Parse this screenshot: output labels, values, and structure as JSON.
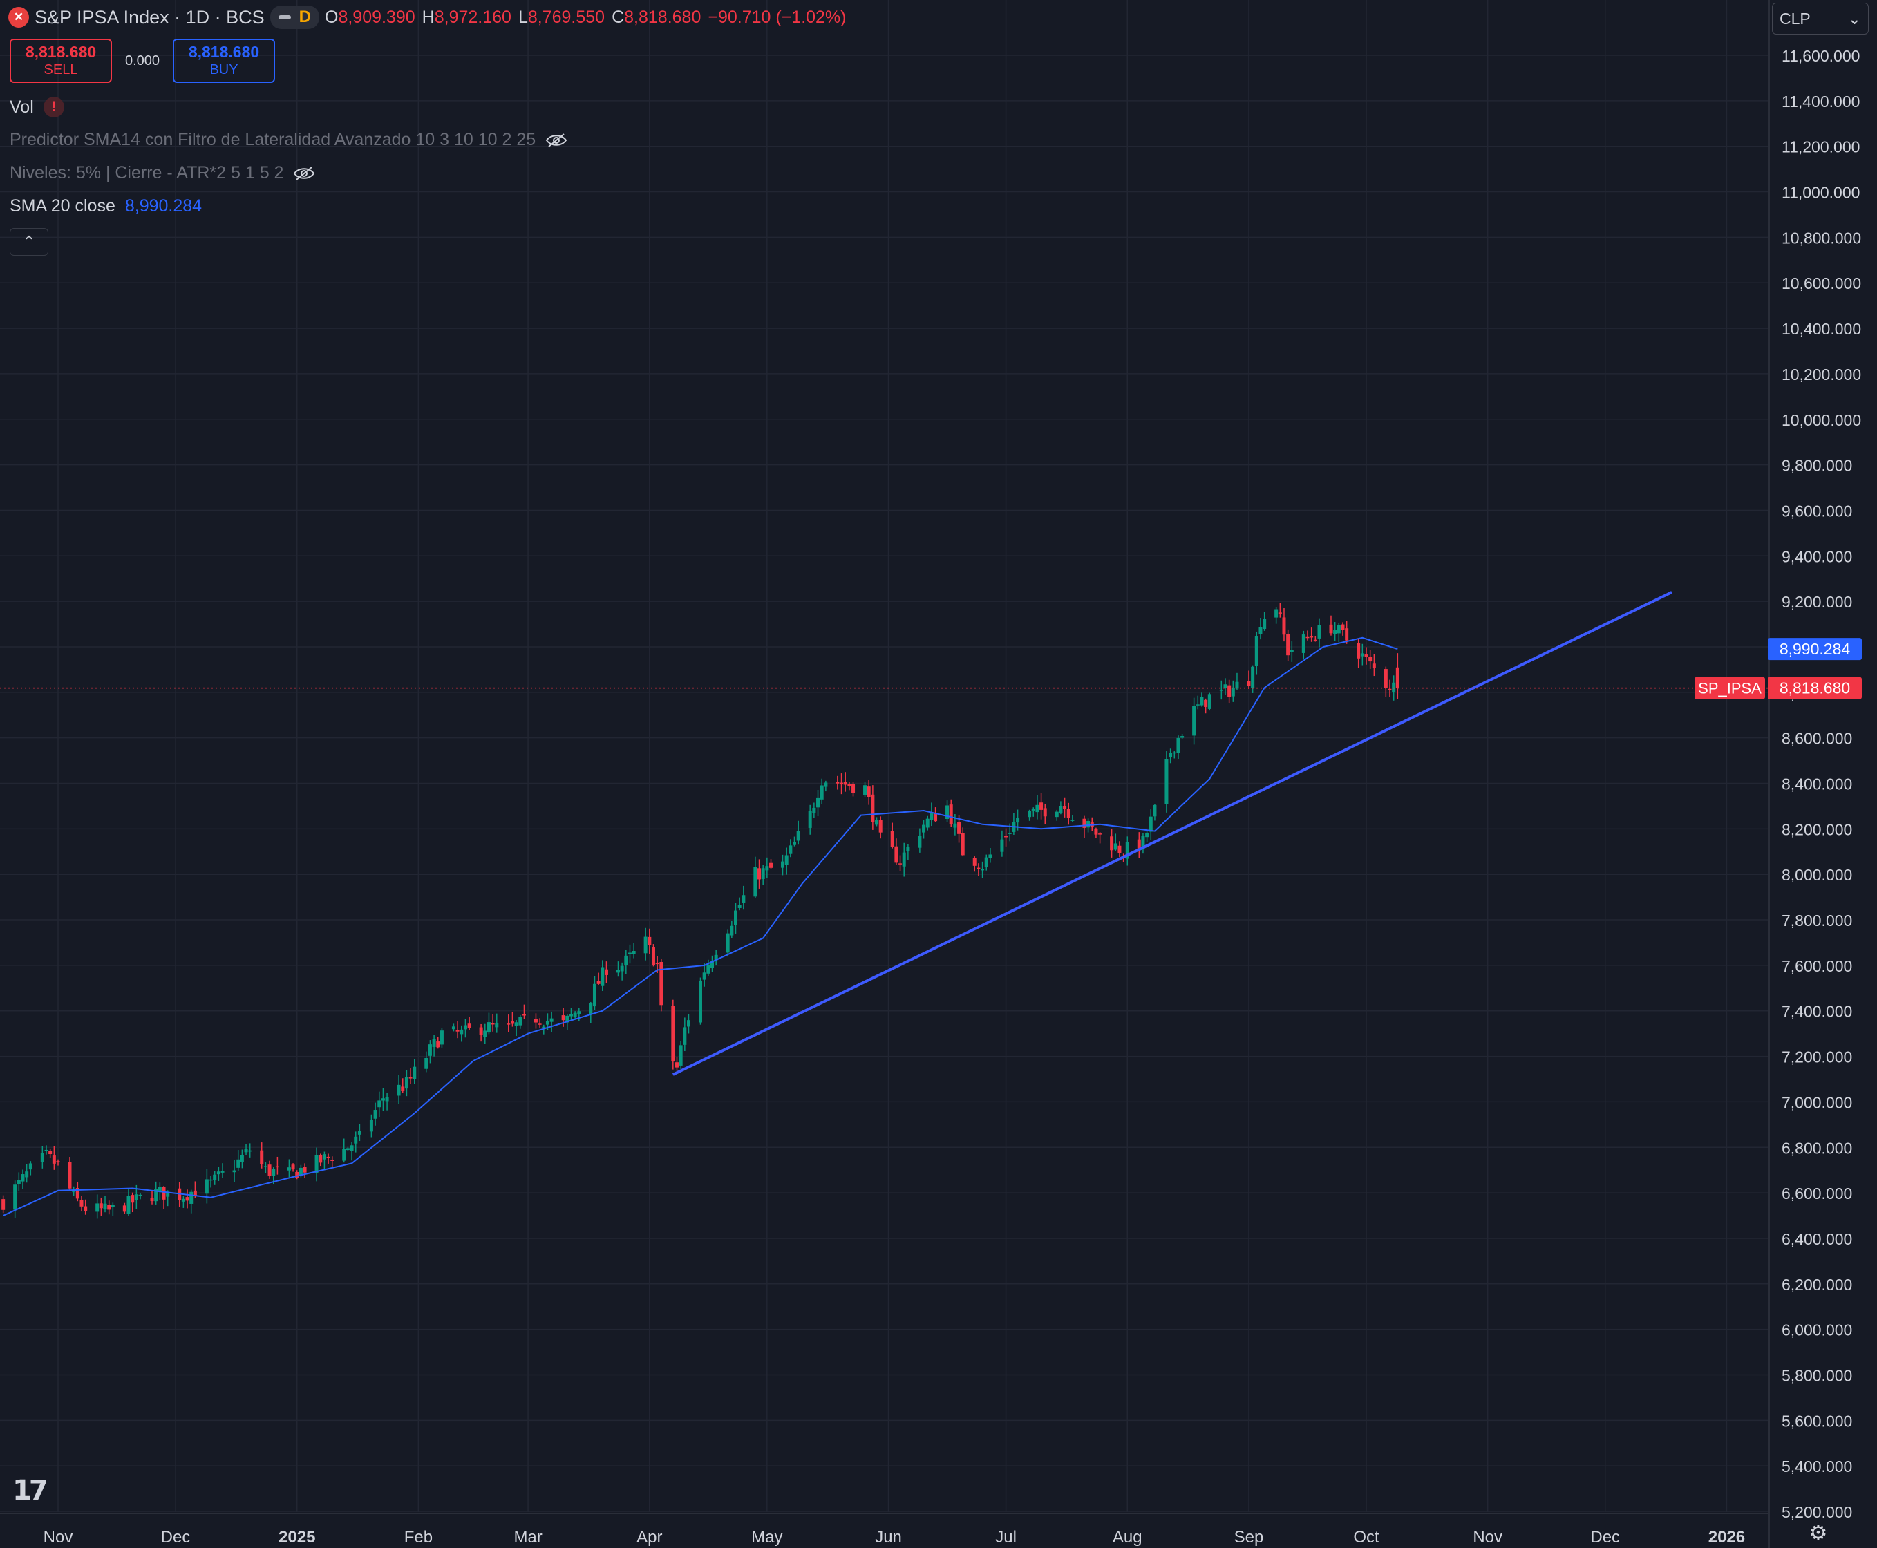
{
  "header": {
    "logo_text": "✕",
    "title": "S&P IPSA Index · 1D · BCS",
    "mode_badge": "D",
    "ohlc": [
      {
        "label": "O",
        "value": "8,909.390"
      },
      {
        "label": "H",
        "value": "8,972.160"
      },
      {
        "label": "L",
        "value": "8,769.550"
      },
      {
        "label": "C",
        "value": "8,818.680"
      }
    ],
    "change": "−90.710 (−1.02%)"
  },
  "trade": {
    "sell_price": "8,818.680",
    "sell_label": "SELL",
    "spread": "0.000",
    "buy_price": "8,818.680",
    "buy_label": "BUY"
  },
  "legend": {
    "vol_label": "Vol",
    "vol_warning": "!",
    "indicator1": "Predictor SMA14 con Filtro de Lateralidad Avanzado 10 3 10 10 2 25",
    "indicator2": "Niveles: 5% | Cierre - ATR*2 5 1 5 2",
    "sma_label": "SMA 20 close",
    "sma_value": "8,990.284",
    "collapse_icon": "⌃"
  },
  "currency": {
    "label": "CLP",
    "chevron": "⌄"
  },
  "footer": {
    "logo": "17",
    "settings_icon": "⚙"
  },
  "colors": {
    "background": "#161a25",
    "grid": "#222633",
    "up": "#089981",
    "down": "#f23645",
    "sma": "#2962ff",
    "trendline": "#3d5afe",
    "text": "#d1d4dc"
  },
  "chart_data": {
    "type": "candlestick",
    "symbol": "SP_IPSA",
    "last_price": "8,818.680",
    "sma_tag": "8,990.284",
    "ylim": [
      5200,
      11750
    ],
    "y_ticks": [
      5200,
      5400,
      5600,
      5800,
      6000,
      6200,
      6400,
      6600,
      6800,
      7000,
      7200,
      7400,
      7600,
      7800,
      8000,
      8200,
      8400,
      8600,
      8800,
      9000,
      9200,
      9400,
      9600,
      9800,
      10000,
      10200,
      10400,
      10600,
      10800,
      11000,
      11200,
      11400,
      11600
    ],
    "y_tick_labels": [
      "5,200.000",
      "5,400.000",
      "5,600.000",
      "5,800.000",
      "6,000.000",
      "6,200.000",
      "6,400.000",
      "6,600.000",
      "6,800.000",
      "7,000.000",
      "7,200.000",
      "7,400.000",
      "7,600.000",
      "7,800.000",
      "8,000.000",
      "8,200.000",
      "8,400.000",
      "8,600.000",
      "8,800.000",
      "9,000.000",
      "9,200.000",
      "9,400.000",
      "9,600.000",
      "9,800.000",
      "10,000.000",
      "10,200.000",
      "10,400.000",
      "10,600.000",
      "10,800.000",
      "11,000.000",
      "11,200.000",
      "11,400.000",
      "11,600.000"
    ],
    "x_ticks": [
      {
        "label": "Nov",
        "date": "2024-11-01",
        "bold": false
      },
      {
        "label": "Dec",
        "date": "2024-12-01",
        "bold": false
      },
      {
        "label": "2025",
        "date": "2025-01-01",
        "bold": true
      },
      {
        "label": "Feb",
        "date": "2025-02-01",
        "bold": false
      },
      {
        "label": "Mar",
        "date": "2025-03-01",
        "bold": false
      },
      {
        "label": "Apr",
        "date": "2025-04-01",
        "bold": false
      },
      {
        "label": "May",
        "date": "2025-05-01",
        "bold": false
      },
      {
        "label": "Jun",
        "date": "2025-06-01",
        "bold": false
      },
      {
        "label": "Jul",
        "date": "2025-07-01",
        "bold": false
      },
      {
        "label": "Aug",
        "date": "2025-08-01",
        "bold": false
      },
      {
        "label": "Sep",
        "date": "2025-09-01",
        "bold": false
      },
      {
        "label": "Oct",
        "date": "2025-10-01",
        "bold": false
      },
      {
        "label": "Nov",
        "date": "2025-11-01",
        "bold": false
      },
      {
        "label": "Dec",
        "date": "2025-12-01",
        "bold": false
      },
      {
        "label": "2026",
        "date": "2026-01-01",
        "bold": true
      }
    ],
    "close_path": [
      [
        "2024-10-18",
        6560
      ],
      [
        "2024-10-25",
        6700
      ],
      [
        "2024-10-29",
        6760
      ],
      [
        "2024-11-01",
        6720
      ],
      [
        "2024-11-05",
        6580
      ],
      [
        "2024-11-08",
        6530
      ],
      [
        "2024-11-14",
        6520
      ],
      [
        "2024-11-20",
        6560
      ],
      [
        "2024-11-26",
        6600
      ],
      [
        "2024-12-03",
        6590
      ],
      [
        "2024-12-10",
        6640
      ],
      [
        "2024-12-16",
        6720
      ],
      [
        "2024-12-20",
        6790
      ],
      [
        "2024-12-24",
        6700
      ],
      [
        "2024-12-30",
        6680
      ],
      [
        "2025-01-07",
        6740
      ],
      [
        "2025-01-13",
        6790
      ],
      [
        "2025-01-17",
        6840
      ],
      [
        "2025-01-23",
        7020
      ],
      [
        "2025-01-29",
        7080
      ],
      [
        "2025-02-03",
        7200
      ],
      [
        "2025-02-07",
        7300
      ],
      [
        "2025-02-12",
        7300
      ],
      [
        "2025-02-18",
        7330
      ],
      [
        "2025-02-24",
        7320
      ],
      [
        "2025-03-03",
        7370
      ],
      [
        "2025-03-10",
        7340
      ],
      [
        "2025-03-17",
        7460
      ],
      [
        "2025-03-21",
        7590
      ],
      [
        "2025-03-25",
        7600
      ],
      [
        "2025-03-31",
        7700
      ],
      [
        "2025-04-03",
        7600
      ],
      [
        "2025-04-04",
        7400
      ],
      [
        "2025-04-07",
        7180
      ],
      [
        "2025-04-08",
        7150
      ],
      [
        "2025-04-10",
        7320
      ],
      [
        "2025-04-15",
        7580
      ],
      [
        "2025-04-22",
        7800
      ],
      [
        "2025-04-28",
        8000
      ],
      [
        "2025-05-05",
        8040
      ],
      [
        "2025-05-12",
        8260
      ],
      [
        "2025-05-15",
        8420
      ],
      [
        "2025-05-20",
        8400
      ],
      [
        "2025-05-26",
        8380
      ],
      [
        "2025-05-30",
        8150
      ],
      [
        "2025-06-04",
        8060
      ],
      [
        "2025-06-10",
        8220
      ],
      [
        "2025-06-16",
        8300
      ],
      [
        "2025-06-20",
        8100
      ],
      [
        "2025-06-25",
        8040
      ],
      [
        "2025-06-30",
        8150
      ],
      [
        "2025-07-04",
        8250
      ],
      [
        "2025-07-10",
        8280
      ],
      [
        "2025-07-15",
        8310
      ],
      [
        "2025-07-21",
        8220
      ],
      [
        "2025-07-25",
        8170
      ],
      [
        "2025-07-31",
        8100
      ],
      [
        "2025-08-05",
        8140
      ],
      [
        "2025-08-08",
        8280
      ],
      [
        "2025-08-12",
        8540
      ],
      [
        "2025-08-18",
        8720
      ],
      [
        "2025-08-22",
        8780
      ],
      [
        "2025-08-27",
        8810
      ],
      [
        "2025-09-01",
        8860
      ],
      [
        "2025-09-04",
        9120
      ],
      [
        "2025-09-08",
        9180
      ],
      [
        "2025-09-11",
        8980
      ],
      [
        "2025-09-16",
        9040
      ],
      [
        "2025-09-22",
        9090
      ],
      [
        "2025-09-25",
        9050
      ],
      [
        "2025-09-30",
        8960
      ],
      [
        "2025-10-06",
        8840
      ],
      [
        "2025-10-09",
        8818.68
      ]
    ],
    "sma_path": [
      [
        "2024-10-18",
        6500
      ],
      [
        "2024-11-01",
        6610
      ],
      [
        "2024-11-20",
        6620
      ],
      [
        "2024-12-10",
        6580
      ],
      [
        "2024-12-31",
        6670
      ],
      [
        "2025-01-15",
        6730
      ],
      [
        "2025-01-31",
        6950
      ],
      [
        "2025-02-15",
        7180
      ],
      [
        "2025-03-01",
        7300
      ],
      [
        "2025-03-20",
        7400
      ],
      [
        "2025-04-03",
        7580
      ],
      [
        "2025-04-15",
        7600
      ],
      [
        "2025-04-30",
        7720
      ],
      [
        "2025-05-10",
        7960
      ],
      [
        "2025-05-25",
        8260
      ],
      [
        "2025-06-10",
        8280
      ],
      [
        "2025-06-25",
        8220
      ],
      [
        "2025-07-10",
        8200
      ],
      [
        "2025-07-25",
        8220
      ],
      [
        "2025-08-08",
        8190
      ],
      [
        "2025-08-22",
        8420
      ],
      [
        "2025-09-05",
        8820
      ],
      [
        "2025-09-20",
        9000
      ],
      [
        "2025-09-30",
        9040
      ],
      [
        "2025-10-09",
        8990.284
      ]
    ],
    "trendline": [
      [
        "2025-04-07",
        7120
      ],
      [
        "2025-12-18",
        9240
      ]
    ],
    "ohlc_last": {
      "date": "2025-10-09",
      "open": 8909.39,
      "high": 8972.16,
      "low": 8769.55,
      "close": 8818.68
    }
  }
}
